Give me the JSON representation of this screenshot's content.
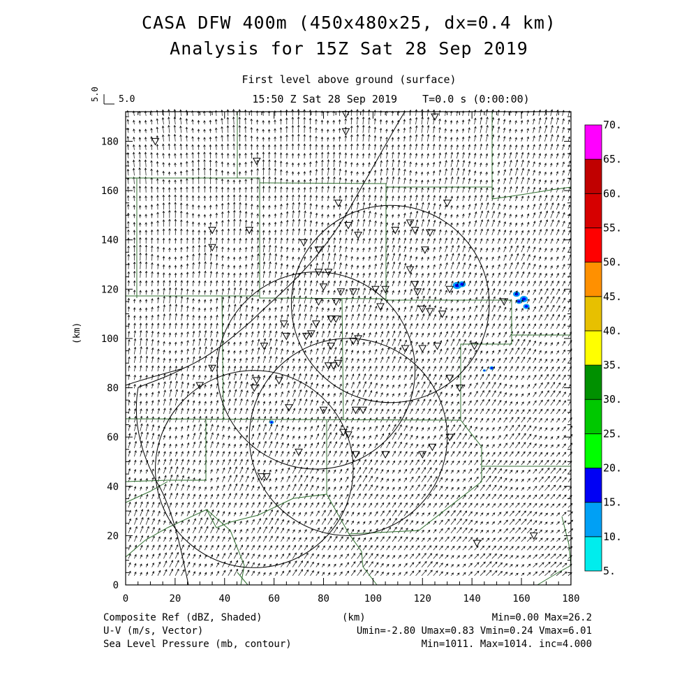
{
  "header": {
    "title_line1": "CASA DFW 400m (450x480x25, dx=0.4 km)",
    "title_line2": "Analysis for 15Z Sat 28 Sep 2019",
    "level": "First level above ground (surface)",
    "time": "15:50 Z Sat 28 Sep 2019    T=0.0 s (0:00:00)"
  },
  "vector_scale": {
    "rotated_label": "5.0",
    "label": "5.0"
  },
  "axes": {
    "xlabel": "(km)",
    "ylabel": "(km)",
    "x_ticks": [
      "0",
      "20",
      "40",
      "60",
      "80",
      "100",
      "120",
      "140",
      "160",
      "180"
    ],
    "y_ticks": [
      "0",
      "20",
      "40",
      "60",
      "80",
      "100",
      "120",
      "140",
      "160",
      "180"
    ],
    "x_range_km": [
      0,
      180
    ],
    "y_range_km": [
      0,
      192
    ]
  },
  "colorbar": {
    "labels": [
      "5.",
      "10.",
      "15.",
      "20.",
      "25.",
      "30.",
      "35.",
      "40.",
      "45.",
      "50.",
      "55.",
      "60.",
      "65.",
      "70."
    ],
    "colors": [
      "#00eded",
      "#00a0f5",
      "#0000f5",
      "#00ff00",
      "#00c800",
      "#009000",
      "#ffff00",
      "#e7c000",
      "#ff9000",
      "#ff0000",
      "#d60000",
      "#c00000",
      "#ff00ff"
    ]
  },
  "footer": {
    "left1": "Composite Ref (dBZ, Shaded)",
    "left2": "U-V (m/s, Vector)",
    "left3": "Sea Level Pressure (mb, contour)",
    "center": "(km)",
    "right1": "Min=0.00 Max=26.2",
    "right2": "Umin=-2.80 Umax=0.83 Vmin=0.24 Vmax=6.01",
    "right3": "Min=1011. Max=1014. inc=4.000"
  },
  "map": {
    "boundary_color": "#2f6f2f",
    "radar_circles": [
      {
        "cx_km": 107,
        "cy_km": 114,
        "r_km": 40
      },
      {
        "cx_km": 77,
        "cy_km": 87,
        "r_km": 40
      },
      {
        "cx_km": 90,
        "cy_km": 60,
        "r_km": 40
      },
      {
        "cx_km": 52,
        "cy_km": 47,
        "r_km": 40
      }
    ],
    "stations_km": [
      [
        12,
        180
      ],
      [
        53,
        172
      ],
      [
        89,
        191
      ],
      [
        89,
        184
      ],
      [
        125,
        190
      ],
      [
        86,
        155
      ],
      [
        130,
        155
      ],
      [
        35,
        144
      ],
      [
        50,
        144
      ],
      [
        109,
        144
      ],
      [
        115,
        147
      ],
      [
        117,
        144
      ],
      [
        123,
        143
      ],
      [
        35,
        137
      ],
      [
        72,
        139
      ],
      [
        78,
        136
      ],
      [
        90,
        146
      ],
      [
        94,
        142
      ],
      [
        121,
        136
      ],
      [
        78,
        127
      ],
      [
        82,
        127
      ],
      [
        80,
        121
      ],
      [
        87,
        119
      ],
      [
        92,
        119
      ],
      [
        101,
        120
      ],
      [
        105,
        120
      ],
      [
        115,
        128
      ],
      [
        117,
        122
      ],
      [
        118,
        119
      ],
      [
        131,
        120
      ],
      [
        78,
        115
      ],
      [
        85,
        115
      ],
      [
        103,
        113
      ],
      [
        120,
        112
      ],
      [
        123,
        111
      ],
      [
        128,
        110
      ],
      [
        77,
        106
      ],
      [
        83,
        108
      ],
      [
        64,
        106
      ],
      [
        75,
        102
      ],
      [
        73,
        101
      ],
      [
        83,
        97
      ],
      [
        85,
        108
      ],
      [
        65,
        101
      ],
      [
        56,
        97
      ],
      [
        92,
        99
      ],
      [
        94,
        100
      ],
      [
        113,
        96
      ],
      [
        120,
        96
      ],
      [
        126,
        97
      ],
      [
        141,
        97
      ],
      [
        153,
        115
      ],
      [
        82,
        89
      ],
      [
        84,
        89
      ],
      [
        86,
        90
      ],
      [
        62,
        83
      ],
      [
        66,
        72
      ],
      [
        53,
        83
      ],
      [
        52,
        80
      ],
      [
        30,
        81
      ],
      [
        35,
        88
      ],
      [
        80,
        71
      ],
      [
        93,
        71
      ],
      [
        96,
        71
      ],
      [
        88,
        62
      ],
      [
        90,
        61
      ],
      [
        93,
        53
      ],
      [
        105,
        53
      ],
      [
        120,
        53
      ],
      [
        124,
        56
      ],
      [
        131,
        60
      ],
      [
        131,
        84
      ],
      [
        135,
        80
      ],
      [
        70,
        54
      ],
      [
        55,
        44
      ],
      [
        57,
        44
      ],
      [
        142,
        17
      ],
      [
        165,
        20
      ]
    ],
    "echoes_km": [
      [
        134,
        121.5,
        1.8
      ],
      [
        136,
        122,
        1.5
      ],
      [
        158,
        118,
        1.4
      ],
      [
        161,
        116,
        1.6
      ],
      [
        162,
        113,
        1.3
      ],
      [
        159,
        115,
        1.2
      ],
      [
        148,
        88,
        0.9
      ],
      [
        59,
        66,
        0.9
      ],
      [
        145,
        87,
        0.6
      ]
    ]
  }
}
